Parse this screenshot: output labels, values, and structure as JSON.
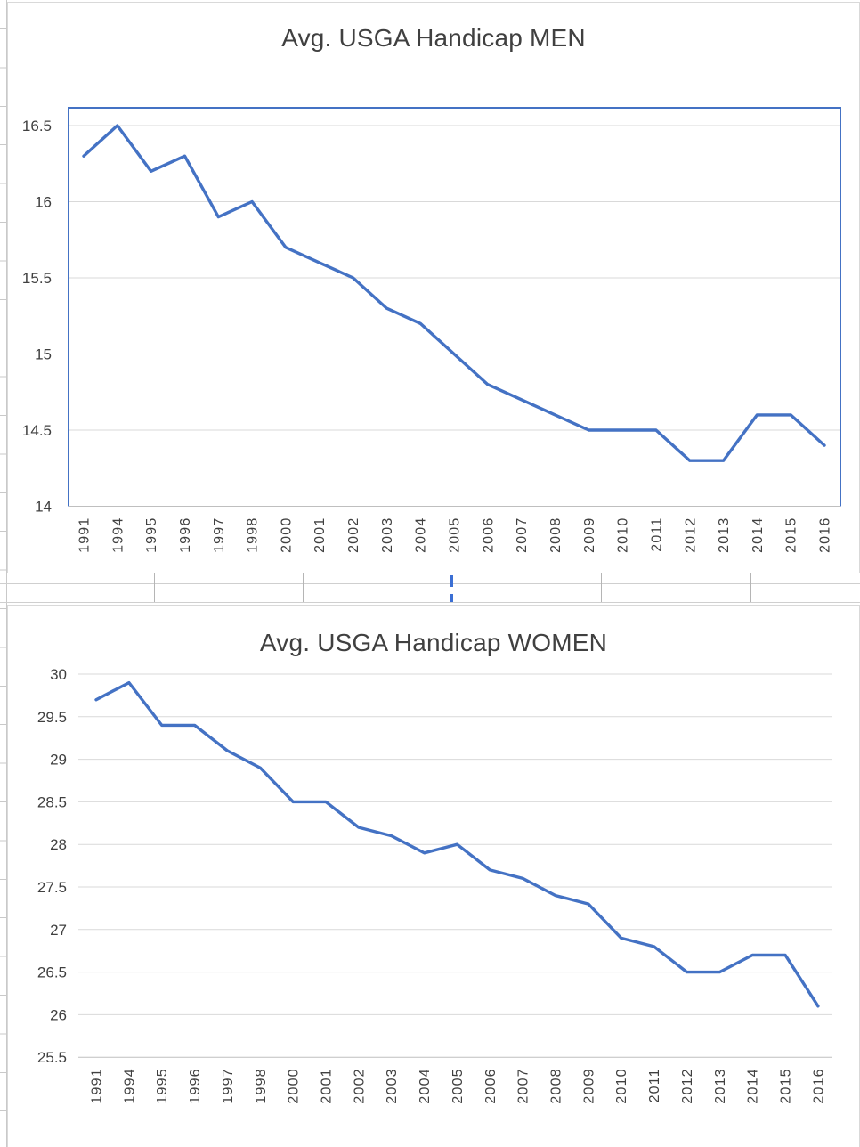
{
  "app_context": "excel-like spreadsheet with two embedded line charts",
  "colors": {
    "series_line": "#4472C4",
    "plot_border_men": "#4472C4",
    "gridline": "#d9d9d9",
    "axis_line": "#bfbfbf",
    "text": "#404040",
    "spreadsheet_gridline": "#c9c9c9",
    "cell_cursor_blue": "#3b6fd4"
  },
  "chart_data": [
    {
      "type": "line",
      "title": "Avg. USGA Handicap MEN",
      "categories": [
        "1991",
        "1994",
        "1995",
        "1996",
        "1997",
        "1998",
        "2000",
        "2001",
        "2002",
        "2003",
        "2004",
        "2005",
        "2006",
        "2007",
        "2008",
        "2009",
        "2010",
        "2011",
        "2012",
        "2013",
        "2014",
        "2015",
        "2016"
      ],
      "series": [
        {
          "name": "Avg. USGA Handicap MEN",
          "values": [
            16.3,
            16.5,
            16.2,
            16.3,
            15.9,
            16.0,
            15.7,
            15.6,
            15.5,
            15.3,
            15.2,
            15.0,
            14.8,
            14.7,
            14.6,
            14.5,
            14.5,
            14.5,
            14.3,
            14.3,
            14.6,
            14.6,
            14.4
          ]
        }
      ],
      "xlabel": "",
      "ylabel": "",
      "ylim": [
        14,
        16.6
      ],
      "yticks": [
        16.5,
        16,
        15.5,
        15,
        14.5,
        14
      ],
      "grid": true,
      "legend": "none",
      "line_color": "#4472C4",
      "plot_border": "blue-top-left-right"
    },
    {
      "type": "line",
      "title": "Avg. USGA Handicap WOMEN",
      "categories": [
        "1991",
        "1994",
        "1995",
        "1996",
        "1997",
        "1998",
        "2000",
        "2001",
        "2002",
        "2003",
        "2004",
        "2005",
        "2006",
        "2007",
        "2008",
        "2009",
        "2010",
        "2011",
        "2012",
        "2013",
        "2014",
        "2015",
        "2016"
      ],
      "series": [
        {
          "name": "Avg. USGA Handicap WOMEN",
          "values": [
            29.7,
            29.9,
            29.4,
            29.4,
            29.1,
            28.9,
            28.5,
            28.5,
            28.2,
            28.1,
            27.9,
            28.0,
            27.7,
            27.6,
            27.4,
            27.3,
            26.9,
            26.8,
            26.5,
            26.5,
            26.7,
            26.7,
            26.1
          ]
        }
      ],
      "xlabel": "",
      "ylabel": "",
      "ylim": [
        25.5,
        30.1
      ],
      "yticks": [
        30,
        29.5,
        29,
        28.5,
        28,
        27.5,
        27,
        26.5,
        26,
        25.5
      ],
      "grid": true,
      "legend": "none",
      "line_color": "#4472C4",
      "plot_border": "none"
    }
  ]
}
